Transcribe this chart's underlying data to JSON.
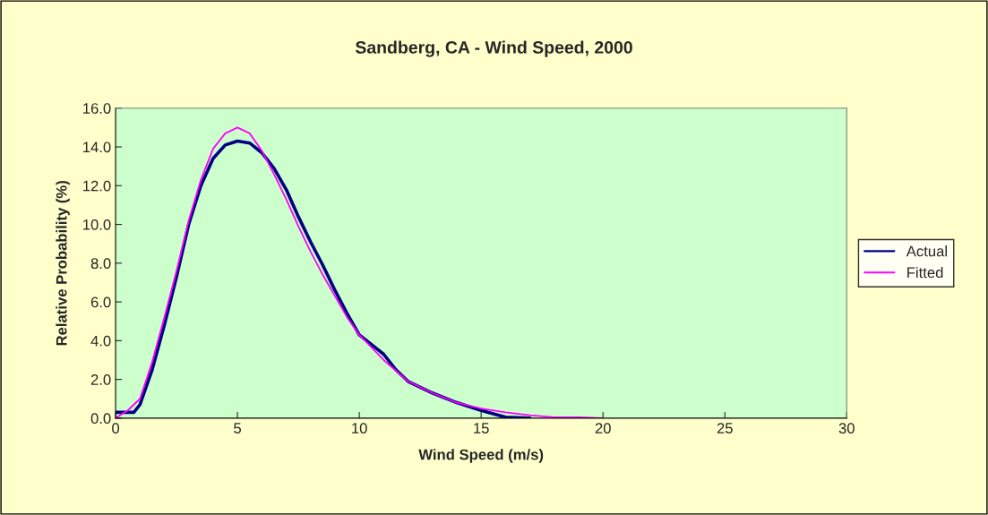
{
  "chart_data": {
    "type": "line",
    "title": "Sandberg, CA - Wind Speed, 2000",
    "xlabel": "Wind Speed (m/s)",
    "ylabel": "Relative Probability (%)",
    "series": [
      {
        "name": "Actual",
        "color": "#000080",
        "x": [
          0,
          0.5,
          0.75,
          1,
          1.5,
          2,
          2.5,
          3,
          3.5,
          4,
          4.5,
          5,
          5.5,
          6,
          6.5,
          7,
          7.5,
          8,
          8.5,
          9,
          9.5,
          10,
          10.5,
          11,
          11.5,
          12,
          13,
          14,
          15,
          16,
          17
        ],
        "values": [
          0.3,
          0.3,
          0.3,
          0.7,
          2.5,
          4.8,
          7.3,
          10.0,
          12.0,
          13.4,
          14.1,
          14.3,
          14.2,
          13.7,
          12.9,
          11.8,
          10.4,
          9.1,
          7.9,
          6.6,
          5.4,
          4.3,
          3.8,
          3.3,
          2.5,
          1.9,
          1.3,
          0.8,
          0.4,
          0.05,
          0
        ]
      },
      {
        "name": "Fitted",
        "color": "#ff00ff",
        "x": [
          0,
          0.5,
          1,
          1.5,
          2,
          2.5,
          3,
          3.5,
          4,
          4.5,
          5,
          5.5,
          6,
          6.5,
          7,
          7.5,
          8,
          8.5,
          9,
          9.5,
          10,
          11,
          12,
          13,
          14,
          15,
          16,
          17,
          18,
          19,
          20
        ],
        "values": [
          0,
          0.4,
          1.0,
          2.9,
          5.2,
          7.6,
          10.2,
          12.3,
          13.9,
          14.7,
          15.0,
          14.7,
          13.8,
          12.6,
          11.3,
          9.9,
          8.6,
          7.4,
          6.3,
          5.2,
          4.3,
          3.0,
          1.9,
          1.3,
          0.8,
          0.5,
          0.3,
          0.15,
          0.05,
          0.05,
          0
        ]
      }
    ],
    "xlim": [
      0,
      30
    ],
    "xticks": [
      0,
      5,
      10,
      15,
      20,
      25,
      30
    ],
    "ylim": [
      0,
      16
    ],
    "yticks": [
      {
        "value": 0,
        "label": "0.0"
      },
      {
        "value": 2,
        "label": "2.0"
      },
      {
        "value": 4,
        "label": "4.0"
      },
      {
        "value": 6,
        "label": "6.0"
      },
      {
        "value": 8,
        "label": "8.0"
      },
      {
        "value": 10,
        "label": "10.0"
      },
      {
        "value": 12,
        "label": "12.0"
      },
      {
        "value": 14,
        "label": "14.0"
      },
      {
        "value": 16,
        "label": "16.0"
      }
    ],
    "grid": false,
    "legend": "right",
    "marker": "none",
    "line_style": "solid"
  }
}
